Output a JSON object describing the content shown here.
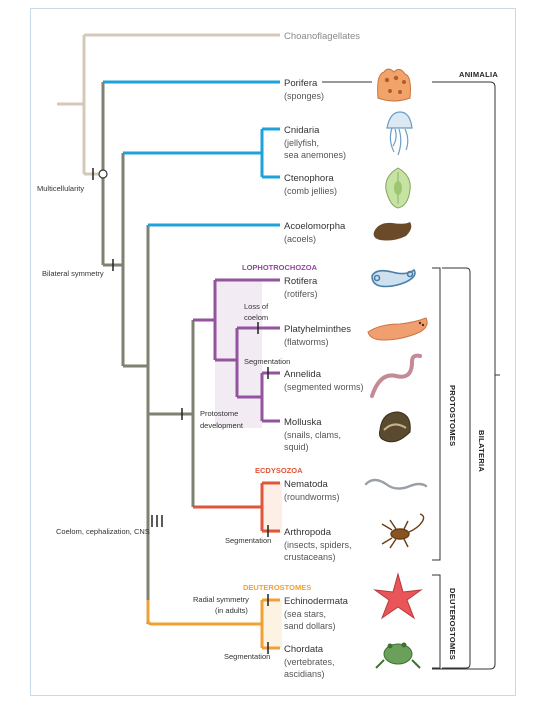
{
  "taxa": {
    "choanoflagellates": {
      "name": "Choanoflagellates"
    },
    "porifera": {
      "name": "Porifera",
      "common": "(sponges)"
    },
    "cnidaria": {
      "name": "Cnidaria",
      "common1": "(jellyfish,",
      "common2": "sea anemones)"
    },
    "ctenophora": {
      "name": "Ctenophora",
      "common": "(comb jellies)"
    },
    "acoelomorpha": {
      "name": "Acoelomorpha",
      "common": "(acoels)"
    },
    "rotifera": {
      "name": "Rotifera",
      "common": "(rotifers)"
    },
    "platyhelminthes": {
      "name": "Platyhelminthes",
      "common": "(flatworms)"
    },
    "annelida": {
      "name": "Annelida",
      "common": "(segmented worms)"
    },
    "molluska": {
      "name": "Molluska",
      "common1": "(snails, clams,",
      "common2": "squid)"
    },
    "nematoda": {
      "name": "Nematoda",
      "common": "(roundworms)"
    },
    "arthropoda": {
      "name": "Arthropoda",
      "common1": "(insects, spiders,",
      "common2": "crustaceans)"
    },
    "echinodermata": {
      "name": "Echinodermata",
      "common1": "(sea stars,",
      "common2": "sand dollars)"
    },
    "chordata": {
      "name": "Chordata",
      "common1": "(vertebrates,",
      "common2": "ascidians)"
    }
  },
  "groups": {
    "lophotrochozoa": "LOPHOTROCHOZOA",
    "ecdysozoa": "ECDYSOZOA",
    "deuterostomes": "DEUTEROSTOMES"
  },
  "characters": {
    "multicellularity": "Multicellularity",
    "bilateral_symmetry": "Bilateral symmetry",
    "coelom": "Coelom, cephalization, CNS",
    "protostome1": "Protostome",
    "protostome2": "development",
    "loss_coelom1": "Loss of",
    "loss_coelom2": "coelom",
    "segmentation_lopho": "Segmentation",
    "segmentation_ecdy": "Segmentation",
    "radial1": "Radial symmetry",
    "radial2": "(in adults)",
    "segmentation_chord": "Segmentation"
  },
  "brackets": {
    "animalia": "ANIMALIA",
    "bilateria": "BILATERIA",
    "protostomes": "PROTOSTOMES",
    "deuterostomes": "DEUTEROSTOMES"
  },
  "colors": {
    "stem": "#d4c9b8",
    "animal_trunk": "#7d8272",
    "basal": "#1fa1d9",
    "lopho": "#93539e",
    "ecdy": "#e0563a",
    "deut": "#f0a135",
    "lopho_text": "#8e4a99",
    "ecdy_text": "#e2553a",
    "deut_text": "#f0a135",
    "shade_lopho": "#f3ebf4",
    "shade_ecdy": "#fdeee6",
    "shade_deut": "#fdf3e3"
  }
}
